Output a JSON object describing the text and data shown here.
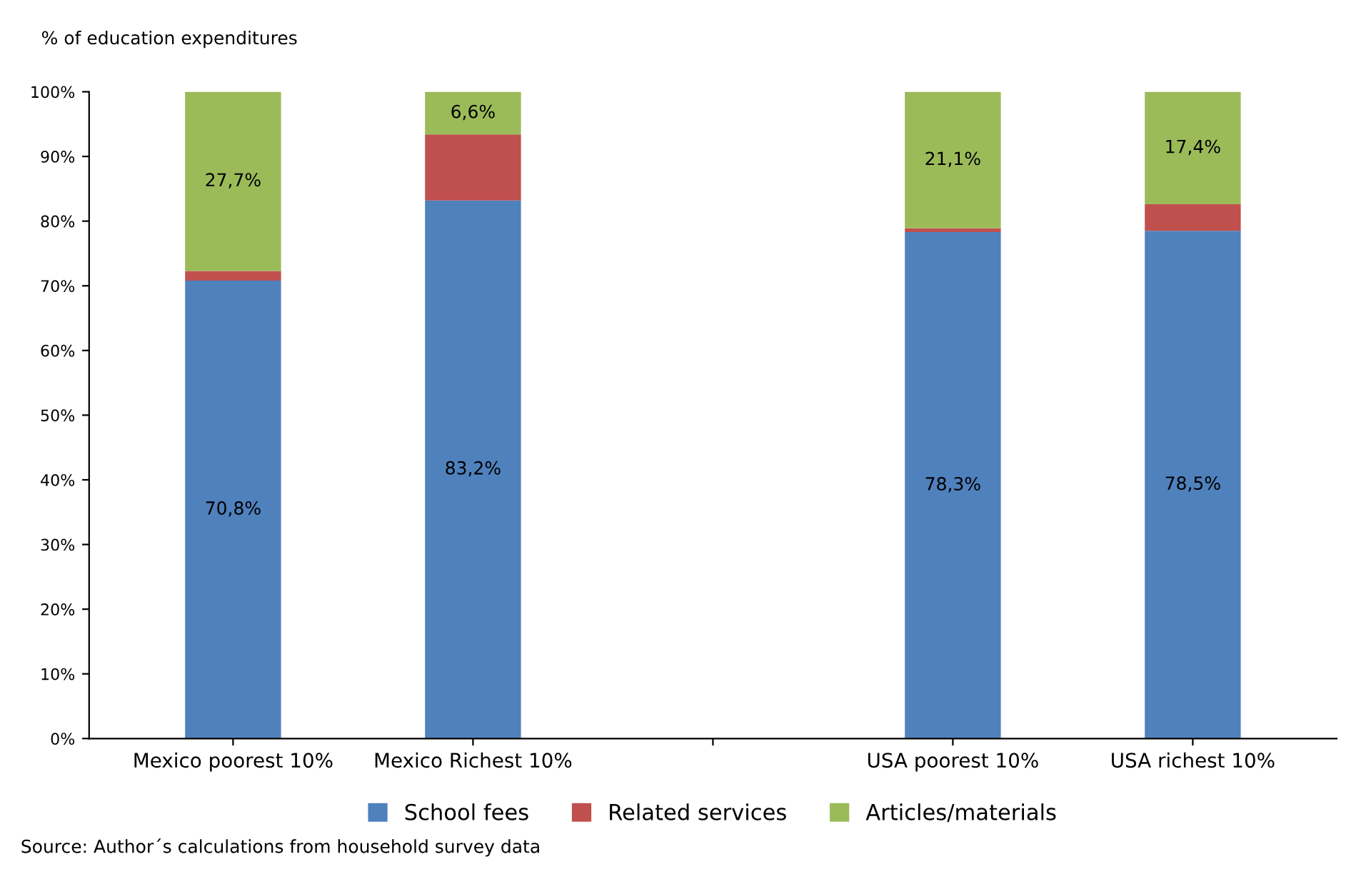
{
  "chart_data": {
    "type": "bar",
    "stacked": true,
    "ylabel": "% of education expenditures",
    "categories": [
      "Mexico poorest 10%",
      "Mexico Richest 10%",
      null,
      "USA poorest 10%",
      "USA richest 10%"
    ],
    "series": [
      {
        "name": "School fees",
        "color": "#4f81bd",
        "values": [
          70.8,
          83.2,
          null,
          78.3,
          78.5
        ],
        "value_labels": [
          "70,8%",
          "83,2%",
          null,
          "78,3%",
          "78,5%"
        ]
      },
      {
        "name": "Related services",
        "color": "#c0504d",
        "values": [
          1.5,
          10.2,
          null,
          0.6,
          4.1
        ]
      },
      {
        "name": "Articles/materials",
        "color": "#9bbb59",
        "values": [
          27.7,
          6.6,
          null,
          21.1,
          17.4
        ],
        "value_labels": [
          "27,7%",
          "6,6%",
          null,
          "21,1%",
          "17,4%"
        ]
      }
    ],
    "ylim": [
      0,
      100
    ],
    "yticks": [
      {
        "value": 0,
        "label": "0%"
      },
      {
        "value": 10,
        "label": "10%"
      },
      {
        "value": 20,
        "label": "20%"
      },
      {
        "value": 30,
        "label": "30%"
      },
      {
        "value": 40,
        "label": "40%"
      },
      {
        "value": 50,
        "label": "50%"
      },
      {
        "value": 60,
        "label": "60%"
      },
      {
        "value": 70,
        "label": "70%"
      },
      {
        "value": 80,
        "label": "80%"
      },
      {
        "value": 90,
        "label": "90%"
      },
      {
        "value": 100,
        "label": "100%"
      }
    ],
    "grid": false,
    "legend": "bottom",
    "annotations": [
      "Source: Author´s calculations from household survey data"
    ]
  }
}
